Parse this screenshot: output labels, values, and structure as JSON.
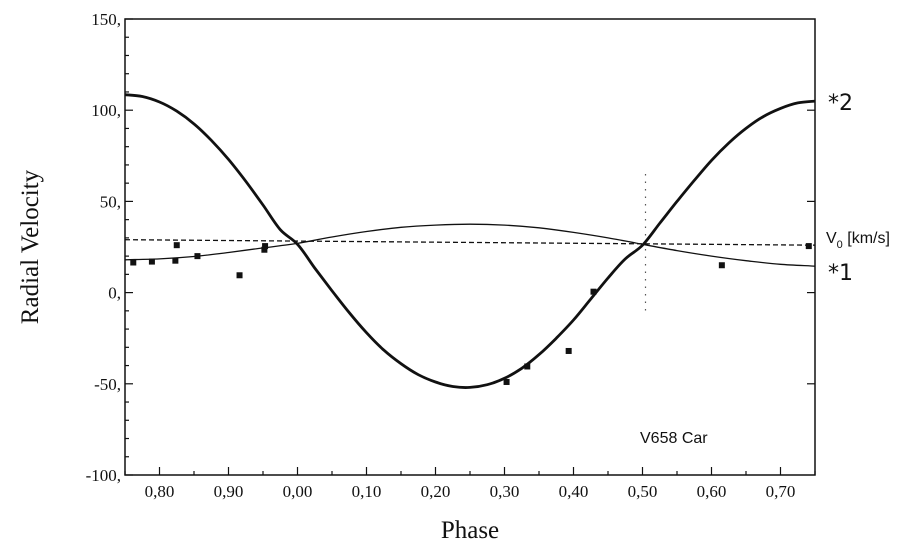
{
  "chart_data": {
    "type": "scatter",
    "title": "",
    "xlabel": "Phase",
    "ylabel": "Radial Velocity",
    "xlim": [
      0.75,
      1.75
    ],
    "ylim": [
      -100,
      150
    ],
    "x_ticks": [
      {
        "value": 0.8,
        "label": "0,80"
      },
      {
        "value": 0.9,
        "label": "0,90"
      },
      {
        "value": 1.0,
        "label": "0,00"
      },
      {
        "value": 1.1,
        "label": "0,10"
      },
      {
        "value": 1.2,
        "label": "0,20"
      },
      {
        "value": 1.3,
        "label": "0,30"
      },
      {
        "value": 1.4,
        "label": "0,40"
      },
      {
        "value": 1.5,
        "label": "0,50"
      },
      {
        "value": 1.6,
        "label": "0,60"
      },
      {
        "value": 1.7,
        "label": "0,70"
      }
    ],
    "y_ticks": [
      {
        "value": 150,
        "label": "150,"
      },
      {
        "value": 100,
        "label": "100,"
      },
      {
        "value": 50,
        "label": "50,"
      },
      {
        "value": 0,
        "label": "0,"
      },
      {
        "value": -50,
        "label": "-50,"
      },
      {
        "value": -100,
        "label": "-100,"
      }
    ],
    "systemic_velocity": {
      "start": 29,
      "end": 26,
      "label_main": "V",
      "label_sub": "0",
      "label_unit": " [km/s]"
    },
    "series": [
      {
        "name": "*2",
        "style": "thick",
        "points": [
          [
            0.75,
            108.5
          ],
          [
            0.775,
            107.5
          ],
          [
            0.8,
            104.5
          ],
          [
            0.825,
            99.5
          ],
          [
            0.85,
            92.5
          ],
          [
            0.875,
            83.5
          ],
          [
            0.9,
            73
          ],
          [
            0.925,
            61
          ],
          [
            0.95,
            48
          ],
          [
            0.975,
            34.5
          ],
          [
            1.0,
            26.5
          ],
          [
            1.025,
            13.5
          ],
          [
            1.05,
            1
          ],
          [
            1.075,
            -11
          ],
          [
            1.1,
            -22
          ],
          [
            1.125,
            -31.5
          ],
          [
            1.15,
            -39
          ],
          [
            1.175,
            -45
          ],
          [
            1.2,
            -49
          ],
          [
            1.225,
            -51.5
          ],
          [
            1.25,
            -52
          ],
          [
            1.275,
            -50.5
          ],
          [
            1.3,
            -47
          ],
          [
            1.325,
            -41.5
          ],
          [
            1.35,
            -34
          ],
          [
            1.375,
            -25
          ],
          [
            1.4,
            -15
          ],
          [
            1.425,
            -3.5
          ],
          [
            1.45,
            8
          ],
          [
            1.475,
            18.5
          ],
          [
            1.5,
            26
          ],
          [
            1.525,
            38
          ],
          [
            1.55,
            50
          ],
          [
            1.575,
            61.5
          ],
          [
            1.6,
            72.5
          ],
          [
            1.625,
            82
          ],
          [
            1.65,
            90
          ],
          [
            1.675,
            96.5
          ],
          [
            1.7,
            101
          ],
          [
            1.725,
            104
          ],
          [
            1.75,
            105
          ]
        ]
      },
      {
        "name": "*1",
        "style": "thin",
        "points": [
          [
            0.75,
            18
          ],
          [
            0.8,
            18.5
          ],
          [
            0.85,
            19.8
          ],
          [
            0.9,
            22
          ],
          [
            0.95,
            24.5
          ],
          [
            1.0,
            27
          ],
          [
            1.05,
            30.5
          ],
          [
            1.1,
            33.5
          ],
          [
            1.15,
            35.8
          ],
          [
            1.2,
            37
          ],
          [
            1.25,
            37.5
          ],
          [
            1.3,
            37
          ],
          [
            1.35,
            35.5
          ],
          [
            1.4,
            33
          ],
          [
            1.45,
            30
          ],
          [
            1.5,
            26.5
          ],
          [
            1.55,
            23
          ],
          [
            1.6,
            20
          ],
          [
            1.65,
            17.5
          ],
          [
            1.7,
            15.5
          ],
          [
            1.75,
            14.5
          ]
        ]
      }
    ],
    "observations": [
      [
        0.762,
        16.5
      ],
      [
        0.789,
        17
      ],
      [
        0.823,
        17.5
      ],
      [
        0.825,
        26
      ],
      [
        0.855,
        20
      ],
      [
        0.916,
        9.5
      ],
      [
        0.952,
        23.5
      ],
      [
        0.953,
        25.5
      ],
      [
        1.303,
        -49
      ],
      [
        1.333,
        -40.5
      ],
      [
        1.393,
        -32
      ],
      [
        1.429,
        0.5
      ],
      [
        1.615,
        15
      ],
      [
        1.741,
        25.5
      ]
    ],
    "annotations": [
      {
        "text": "V658 Car"
      }
    ]
  }
}
